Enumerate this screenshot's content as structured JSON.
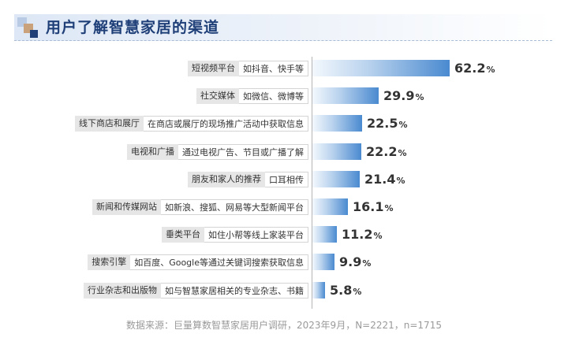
{
  "title": "用户了解智慧家居的渠道",
  "source": "数据来源：巨量算数智慧家居用户调研，2023年9月，N=2221，n=1715",
  "colors": {
    "title": "#1f3f78",
    "bar_start": "#f3f8fd",
    "bar_end": "#4a8ad0",
    "label_bg": "#e6e6e6"
  },
  "chart_data": {
    "type": "bar",
    "orientation": "horizontal",
    "xlim": [
      0,
      62.2
    ],
    "unit": "%",
    "categories": [
      {
        "name": "短视频平台",
        "desc": "如抖音、快手等"
      },
      {
        "name": "社交媒体",
        "desc": "如微信、微博等"
      },
      {
        "name": "线下商店和展厅",
        "desc": "在商店或展厅的现场推广活动中获取信息"
      },
      {
        "name": "电视和广播",
        "desc": "通过电视广告、节目或广播了解"
      },
      {
        "name": "朋友和家人的推荐",
        "desc": "口耳相传"
      },
      {
        "name": "新闻和传媒网站",
        "desc": "如新浪、搜狐、网易等大型新闻平台"
      },
      {
        "name": "垂类平台",
        "desc": "如住小帮等线上家装平台"
      },
      {
        "name": "搜索引擎",
        "desc": "如百度、Google等通过关键词搜索获取信息"
      },
      {
        "name": "行业杂志和出版物",
        "desc": "如与智慧家居相关的专业杂志、书籍"
      }
    ],
    "values": [
      62.2,
      29.9,
      22.5,
      22.2,
      21.4,
      16.1,
      11.2,
      9.9,
      5.8
    ],
    "value_labels": [
      "62.2",
      "29.9",
      "22.5",
      "22.2",
      "21.4",
      "16.1",
      "11.2",
      "9.9",
      "5.8"
    ]
  }
}
